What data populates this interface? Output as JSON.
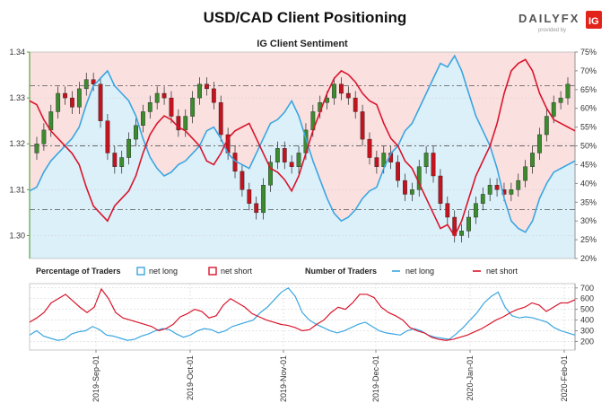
{
  "header": {
    "title": "USD/CAD Client Positioning",
    "logo_text": "DAILYFX",
    "logo_sub": "provided by",
    "logo_badge": "IG"
  },
  "colors": {
    "long": "#3aa6e0",
    "short": "#d9152c",
    "long_fill": "#dcf0fa",
    "short_fill": "#fbe0e0",
    "candle_up": "#3c8b2e",
    "candle_down": "#c2131e",
    "axis_green": "#59a33c"
  },
  "chart_data": [
    {
      "type": "line",
      "title": "IG Client Sentiment",
      "left_axis": {
        "ticks": [
          "1.34",
          "1.33",
          "1.32",
          "1.31",
          "1.30"
        ],
        "range": [
          1.295,
          1.34
        ]
      },
      "right_axis": {
        "ticks": [
          "75%",
          "70%",
          "65%",
          "60%",
          "55%",
          "50%",
          "45%",
          "40%",
          "35%",
          "30%",
          "25%",
          "20%"
        ],
        "range": [
          20,
          75
        ]
      },
      "reference_levels": [
        66,
        50,
        33
      ],
      "x_labels": [
        "2019-Sep-01",
        "2019-Oct-01",
        "2019-Nov-01",
        "2019-Dec-01",
        "2020-Jan-01",
        "2020-Feb-01"
      ],
      "series": [
        {
          "key": "net_long_pct",
          "values": [
            38,
            39,
            43,
            46,
            48,
            50,
            52,
            55,
            61,
            66,
            68,
            70,
            66,
            64,
            62,
            58,
            52,
            47,
            44,
            42,
            43,
            45,
            46,
            48,
            50,
            54,
            55,
            52,
            48,
            46,
            45,
            44,
            48,
            52,
            56,
            57,
            59,
            62,
            58,
            52,
            46,
            41,
            36,
            32,
            30,
            31,
            33,
            36,
            38,
            39,
            44,
            48,
            50,
            54,
            56,
            60,
            64,
            68,
            72,
            71,
            74,
            70,
            64,
            58,
            54,
            50,
            44,
            36,
            30,
            28,
            27,
            30,
            36,
            40,
            43,
            44,
            45,
            46
          ]
        },
        {
          "key": "net_short_pct",
          "values": [
            62,
            61,
            57,
            54,
            52,
            50,
            48,
            45,
            39,
            34,
            32,
            30,
            34,
            36,
            38,
            42,
            48,
            53,
            56,
            58,
            57,
            55,
            54,
            52,
            50,
            46,
            45,
            48,
            52,
            54,
            55,
            56,
            52,
            48,
            44,
            43,
            41,
            38,
            42,
            48,
            54,
            59,
            64,
            68,
            70,
            69,
            67,
            64,
            62,
            61,
            56,
            52,
            50,
            46,
            44,
            40,
            36,
            32,
            28,
            29,
            26,
            30,
            36,
            42,
            46,
            50,
            56,
            64,
            70,
            72,
            73,
            70,
            64,
            60,
            57,
            56,
            55,
            54
          ]
        }
      ],
      "price_closes": [
        1.32,
        1.323,
        1.327,
        1.331,
        1.33,
        1.328,
        1.332,
        1.334,
        1.333,
        1.325,
        1.318,
        1.315,
        1.317,
        1.321,
        1.324,
        1.327,
        1.329,
        1.331,
        1.33,
        1.326,
        1.323,
        1.326,
        1.33,
        1.333,
        1.332,
        1.329,
        1.322,
        1.318,
        1.314,
        1.31,
        1.307,
        1.305,
        1.311,
        1.316,
        1.319,
        1.316,
        1.315,
        1.318,
        1.323,
        1.327,
        1.329,
        1.33,
        1.333,
        1.331,
        1.33,
        1.327,
        1.321,
        1.317,
        1.315,
        1.318,
        1.316,
        1.312,
        1.309,
        1.31,
        1.315,
        1.318,
        1.313,
        1.307,
        1.304,
        1.3,
        1.301,
        1.304,
        1.307,
        1.309,
        1.311,
        1.31,
        1.309,
        1.31,
        1.312,
        1.315,
        1.318,
        1.322,
        1.326,
        1.329,
        1.33,
        1.333
      ]
    },
    {
      "type": "line",
      "title": "Number of Traders",
      "right_axis": {
        "ticks": [
          "700",
          "600",
          "500",
          "400",
          "300",
          "200"
        ],
        "range": [
          120,
          740
        ]
      },
      "series": [
        {
          "key": "net_long_count",
          "values": [
            260,
            300,
            250,
            230,
            210,
            220,
            270,
            290,
            300,
            340,
            310,
            260,
            250,
            230,
            210,
            220,
            250,
            270,
            300,
            320,
            310,
            270,
            240,
            260,
            300,
            320,
            310,
            280,
            300,
            340,
            360,
            380,
            400,
            470,
            520,
            590,
            660,
            700,
            620,
            470,
            400,
            360,
            330,
            300,
            280,
            300,
            330,
            360,
            380,
            340,
            300,
            280,
            270,
            260,
            300,
            320,
            300,
            260,
            240,
            230,
            220,
            270,
            330,
            400,
            470,
            560,
            620,
            660,
            520,
            440,
            420,
            430,
            420,
            400,
            380,
            330,
            300,
            280,
            260
          ]
        },
        {
          "key": "net_short_count",
          "values": [
            380,
            420,
            470,
            560,
            600,
            640,
            580,
            520,
            470,
            520,
            690,
            600,
            470,
            420,
            400,
            380,
            360,
            340,
            300,
            320,
            360,
            430,
            460,
            500,
            480,
            420,
            440,
            540,
            600,
            560,
            520,
            460,
            430,
            400,
            380,
            360,
            350,
            330,
            300,
            310,
            360,
            400,
            470,
            520,
            500,
            560,
            640,
            640,
            610,
            520,
            470,
            440,
            400,
            330,
            300,
            280,
            240,
            220,
            210,
            220,
            240,
            260,
            290,
            320,
            360,
            400,
            430,
            470,
            500,
            520,
            560,
            540,
            480,
            520,
            560,
            560,
            590
          ]
        }
      ]
    }
  ],
  "legend": {
    "pct_label": "Percentage of Traders",
    "num_label": "Number of Traders",
    "net_long": "net long",
    "net_short": "net short"
  }
}
